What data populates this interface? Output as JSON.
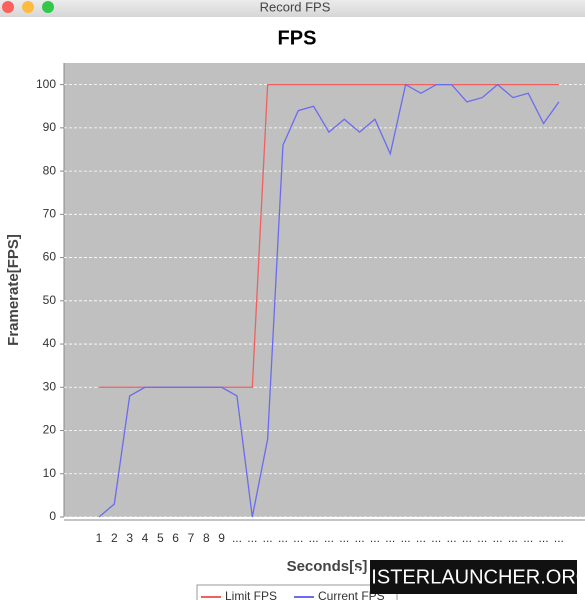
{
  "window_title": "Record FPS",
  "watermark": "MISTERLAUNCHER.ORG",
  "chart_data": {
    "type": "line",
    "title": "FPS",
    "x_label": "Seconds[s]",
    "y_label": "Framerate[FPS]",
    "categories": [
      "1",
      "2",
      "3",
      "4",
      "5",
      "6",
      "7",
      "8",
      "9",
      "...",
      "...",
      "...",
      "...",
      "...",
      "...",
      "...",
      "...",
      "...",
      "...",
      "...",
      "...",
      "...",
      "...",
      "...",
      "...",
      "...",
      "...",
      "...",
      "...",
      "...",
      "..."
    ],
    "series": [
      {
        "name": "Limit FPS",
        "color": "#f06060",
        "values": [
          30,
          30,
          30,
          30,
          30,
          30,
          30,
          30,
          30,
          30,
          30,
          100,
          100,
          100,
          100,
          100,
          100,
          100,
          100,
          100,
          100,
          100,
          100,
          100,
          100,
          100,
          100,
          100,
          100,
          100,
          100
        ]
      },
      {
        "name": "Current FPS",
        "color": "#6b6bf0",
        "values": [
          0,
          3,
          28,
          30,
          30,
          30,
          30,
          30,
          30,
          28,
          0,
          18,
          86,
          94,
          95,
          89,
          92,
          89,
          92,
          84,
          100,
          98,
          100,
          100,
          96,
          97,
          100,
          97,
          98,
          91,
          96
        ]
      }
    ],
    "ylim": [
      0,
      105
    ],
    "yticks": [
      0,
      10,
      20,
      30,
      40,
      50,
      60,
      70,
      80,
      90,
      100
    ],
    "grid": true
  }
}
